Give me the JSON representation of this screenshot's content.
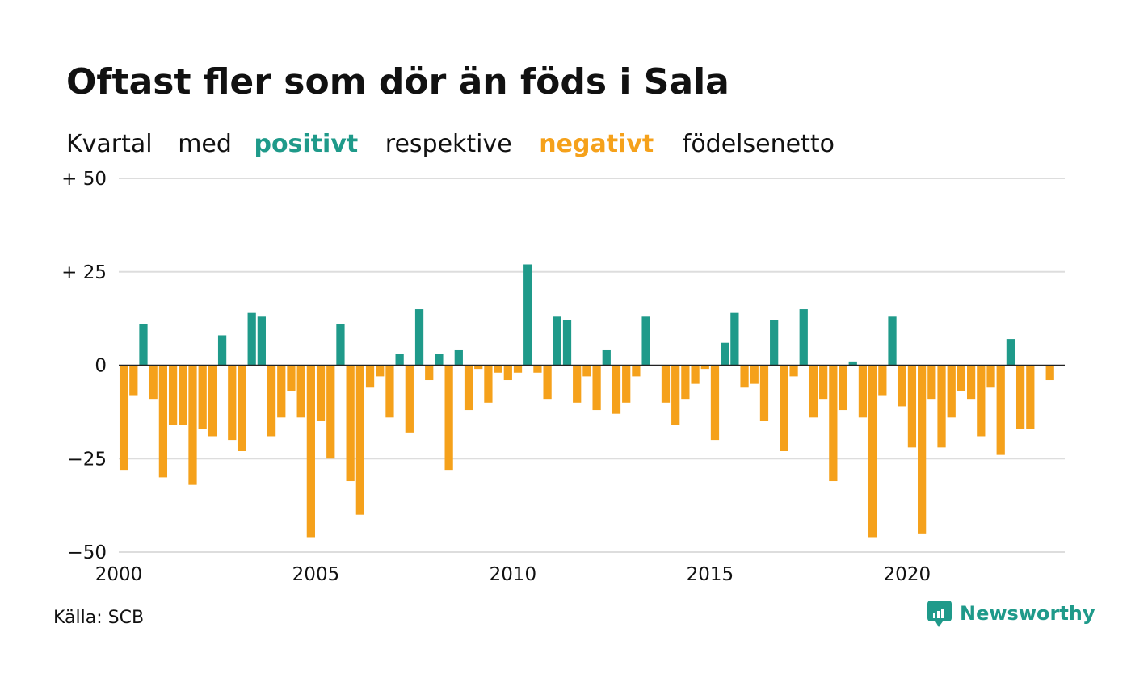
{
  "chart_data": {
    "type": "bar",
    "title": "Oftast fler som dör än föds i Sala",
    "subtitle_parts": [
      "Kvartal",
      "med",
      "positivt",
      "respektive",
      "negativt",
      "födelsenetto"
    ],
    "source": "Källa: SCB",
    "brand": "Newsworthy",
    "colors": {
      "positive": "#1f9a8a",
      "negative": "#f5a11b",
      "grid": "#dddddd",
      "zero_line": "#222222",
      "text": "#111111"
    },
    "y_ticks": [
      {
        "value": 50,
        "label": "+ 50"
      },
      {
        "value": 25,
        "label": "+ 25"
      },
      {
        "value": 0,
        "label": "0"
      },
      {
        "value": -25,
        "label": "−25"
      },
      {
        "value": -50,
        "label": "−50"
      }
    ],
    "x_ticks": [
      {
        "value": 2000,
        "label": "2000"
      },
      {
        "value": 2005,
        "label": "2005"
      },
      {
        "value": 2010,
        "label": "2010"
      },
      {
        "value": 2015,
        "label": "2015"
      },
      {
        "value": 2020,
        "label": "2020"
      }
    ],
    "xlim": [
      2000,
      2024
    ],
    "ylim": [
      -50,
      50
    ],
    "series": [
      {
        "name": "födelsenetto",
        "points": [
          {
            "quarter": "2000-Q1",
            "value": -28
          },
          {
            "quarter": "2000-Q2",
            "value": -8
          },
          {
            "quarter": "2000-Q3",
            "value": 11
          },
          {
            "quarter": "2000-Q4",
            "value": -9
          },
          {
            "quarter": "2001-Q1",
            "value": -30
          },
          {
            "quarter": "2001-Q2",
            "value": -16
          },
          {
            "quarter": "2001-Q3",
            "value": -16
          },
          {
            "quarter": "2001-Q4",
            "value": -32
          },
          {
            "quarter": "2002-Q1",
            "value": -17
          },
          {
            "quarter": "2002-Q2",
            "value": -19
          },
          {
            "quarter": "2002-Q3",
            "value": 8
          },
          {
            "quarter": "2002-Q4",
            "value": -20
          },
          {
            "quarter": "2003-Q1",
            "value": -23
          },
          {
            "quarter": "2003-Q2",
            "value": 14
          },
          {
            "quarter": "2003-Q3",
            "value": 13
          },
          {
            "quarter": "2003-Q4",
            "value": -19
          },
          {
            "quarter": "2004-Q1",
            "value": -14
          },
          {
            "quarter": "2004-Q2",
            "value": -7
          },
          {
            "quarter": "2004-Q3",
            "value": -14
          },
          {
            "quarter": "2004-Q4",
            "value": -46
          },
          {
            "quarter": "2005-Q1",
            "value": -15
          },
          {
            "quarter": "2005-Q2",
            "value": -25
          },
          {
            "quarter": "2005-Q3",
            "value": 11
          },
          {
            "quarter": "2005-Q4",
            "value": -31
          },
          {
            "quarter": "2006-Q1",
            "value": -40
          },
          {
            "quarter": "2006-Q2",
            "value": -6
          },
          {
            "quarter": "2006-Q3",
            "value": -3
          },
          {
            "quarter": "2006-Q4",
            "value": -14
          },
          {
            "quarter": "2007-Q1",
            "value": 3
          },
          {
            "quarter": "2007-Q2",
            "value": -18
          },
          {
            "quarter": "2007-Q3",
            "value": 15
          },
          {
            "quarter": "2007-Q4",
            "value": -4
          },
          {
            "quarter": "2008-Q1",
            "value": 3
          },
          {
            "quarter": "2008-Q2",
            "value": -28
          },
          {
            "quarter": "2008-Q3",
            "value": 4
          },
          {
            "quarter": "2008-Q4",
            "value": -12
          },
          {
            "quarter": "2009-Q1",
            "value": -1
          },
          {
            "quarter": "2009-Q2",
            "value": -10
          },
          {
            "quarter": "2009-Q3",
            "value": -2
          },
          {
            "quarter": "2009-Q4",
            "value": -4
          },
          {
            "quarter": "2010-Q1",
            "value": -2
          },
          {
            "quarter": "2010-Q2",
            "value": 27
          },
          {
            "quarter": "2010-Q3",
            "value": -2
          },
          {
            "quarter": "2010-Q4",
            "value": -9
          },
          {
            "quarter": "2011-Q1",
            "value": 13
          },
          {
            "quarter": "2011-Q2",
            "value": 12
          },
          {
            "quarter": "2011-Q3",
            "value": -10
          },
          {
            "quarter": "2011-Q4",
            "value": -3
          },
          {
            "quarter": "2012-Q1",
            "value": -12
          },
          {
            "quarter": "2012-Q2",
            "value": 4
          },
          {
            "quarter": "2012-Q3",
            "value": -13
          },
          {
            "quarter": "2012-Q4",
            "value": -10
          },
          {
            "quarter": "2013-Q1",
            "value": -3
          },
          {
            "quarter": "2013-Q2",
            "value": 13
          },
          {
            "quarter": "2013-Q3",
            "value": 0
          },
          {
            "quarter": "2013-Q4",
            "value": -10
          },
          {
            "quarter": "2014-Q1",
            "value": -16
          },
          {
            "quarter": "2014-Q2",
            "value": -9
          },
          {
            "quarter": "2014-Q3",
            "value": -5
          },
          {
            "quarter": "2014-Q4",
            "value": -1
          },
          {
            "quarter": "2015-Q1",
            "value": -20
          },
          {
            "quarter": "2015-Q2",
            "value": 6
          },
          {
            "quarter": "2015-Q3",
            "value": 14
          },
          {
            "quarter": "2015-Q4",
            "value": -6
          },
          {
            "quarter": "2016-Q1",
            "value": -5
          },
          {
            "quarter": "2016-Q2",
            "value": -15
          },
          {
            "quarter": "2016-Q3",
            "value": 12
          },
          {
            "quarter": "2016-Q4",
            "value": -23
          },
          {
            "quarter": "2017-Q1",
            "value": -3
          },
          {
            "quarter": "2017-Q2",
            "value": 15
          },
          {
            "quarter": "2017-Q3",
            "value": -14
          },
          {
            "quarter": "2017-Q4",
            "value": -9
          },
          {
            "quarter": "2018-Q1",
            "value": -31
          },
          {
            "quarter": "2018-Q2",
            "value": -12
          },
          {
            "quarter": "2018-Q3",
            "value": 1
          },
          {
            "quarter": "2018-Q4",
            "value": -14
          },
          {
            "quarter": "2019-Q1",
            "value": -46
          },
          {
            "quarter": "2019-Q2",
            "value": -8
          },
          {
            "quarter": "2019-Q3",
            "value": 13
          },
          {
            "quarter": "2019-Q4",
            "value": -11
          },
          {
            "quarter": "2020-Q1",
            "value": -22
          },
          {
            "quarter": "2020-Q2",
            "value": -45
          },
          {
            "quarter": "2020-Q3",
            "value": -9
          },
          {
            "quarter": "2020-Q4",
            "value": -22
          },
          {
            "quarter": "2021-Q1",
            "value": -14
          },
          {
            "quarter": "2021-Q2",
            "value": -7
          },
          {
            "quarter": "2021-Q3",
            "value": -9
          },
          {
            "quarter": "2021-Q4",
            "value": -19
          },
          {
            "quarter": "2022-Q1",
            "value": -6
          },
          {
            "quarter": "2022-Q2",
            "value": -24
          },
          {
            "quarter": "2022-Q3",
            "value": 7
          },
          {
            "quarter": "2022-Q4",
            "value": -17
          },
          {
            "quarter": "2023-Q1",
            "value": -17
          },
          {
            "quarter": "2023-Q2",
            "value": 0
          },
          {
            "quarter": "2023-Q3",
            "value": -4
          }
        ]
      }
    ]
  }
}
